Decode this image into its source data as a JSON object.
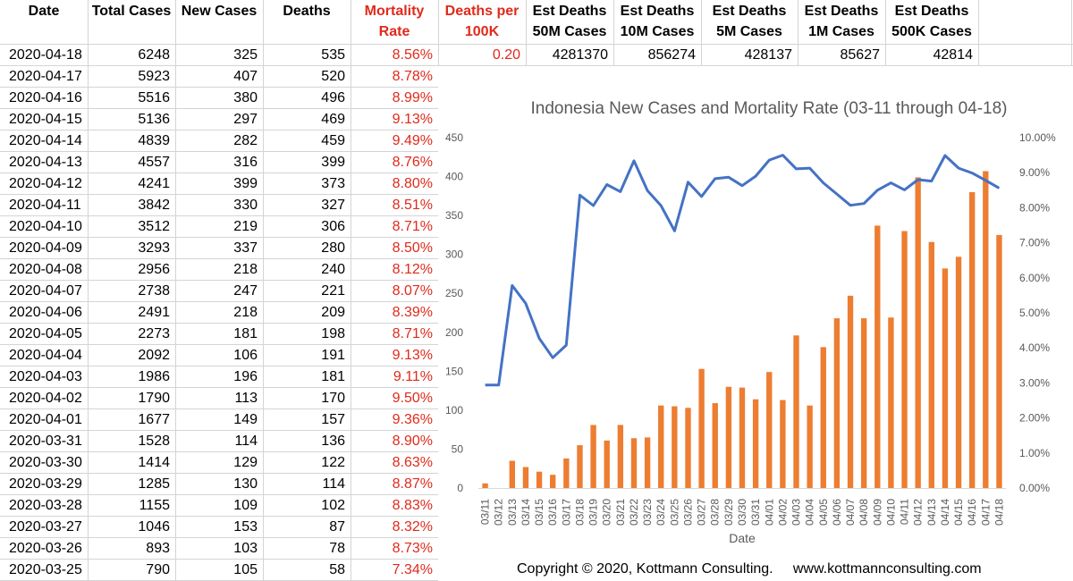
{
  "headers": {
    "date": "Date",
    "total_cases": "Total Cases",
    "new_cases": "New Cases",
    "deaths": "Deaths",
    "mortality_rate": "Mortality\nRate",
    "deaths_per_100k": "Deaths per\n100K",
    "est_50m": "Est Deaths\n50M Cases",
    "est_10m": "Est Deaths\n10M Cases",
    "est_5m": "Est Deaths\n5M Cases",
    "est_1m": "Est Deaths\n1M Cases",
    "est_500k": "Est Deaths\n500K Cases"
  },
  "first_row_extra": {
    "deaths_per_100k": "0.20",
    "est_50m": "4281370",
    "est_10m": "856274",
    "est_5m": "428137",
    "est_1m": "85627",
    "est_500k": "42814"
  },
  "rows": [
    {
      "date": "2020-04-18",
      "total": "6248",
      "new": "325",
      "deaths": "535",
      "rate": "8.56%"
    },
    {
      "date": "2020-04-17",
      "total": "5923",
      "new": "407",
      "deaths": "520",
      "rate": "8.78%"
    },
    {
      "date": "2020-04-16",
      "total": "5516",
      "new": "380",
      "deaths": "496",
      "rate": "8.99%"
    },
    {
      "date": "2020-04-15",
      "total": "5136",
      "new": "297",
      "deaths": "469",
      "rate": "9.13%"
    },
    {
      "date": "2020-04-14",
      "total": "4839",
      "new": "282",
      "deaths": "459",
      "rate": "9.49%"
    },
    {
      "date": "2020-04-13",
      "total": "4557",
      "new": "316",
      "deaths": "399",
      "rate": "8.76%"
    },
    {
      "date": "2020-04-12",
      "total": "4241",
      "new": "399",
      "deaths": "373",
      "rate": "8.80%"
    },
    {
      "date": "2020-04-11",
      "total": "3842",
      "new": "330",
      "deaths": "327",
      "rate": "8.51%"
    },
    {
      "date": "2020-04-10",
      "total": "3512",
      "new": "219",
      "deaths": "306",
      "rate": "8.71%"
    },
    {
      "date": "2020-04-09",
      "total": "3293",
      "new": "337",
      "deaths": "280",
      "rate": "8.50%"
    },
    {
      "date": "2020-04-08",
      "total": "2956",
      "new": "218",
      "deaths": "240",
      "rate": "8.12%"
    },
    {
      "date": "2020-04-07",
      "total": "2738",
      "new": "247",
      "deaths": "221",
      "rate": "8.07%"
    },
    {
      "date": "2020-04-06",
      "total": "2491",
      "new": "218",
      "deaths": "209",
      "rate": "8.39%"
    },
    {
      "date": "2020-04-05",
      "total": "2273",
      "new": "181",
      "deaths": "198",
      "rate": "8.71%"
    },
    {
      "date": "2020-04-04",
      "total": "2092",
      "new": "106",
      "deaths": "191",
      "rate": "9.13%"
    },
    {
      "date": "2020-04-03",
      "total": "1986",
      "new": "196",
      "deaths": "181",
      "rate": "9.11%"
    },
    {
      "date": "2020-04-02",
      "total": "1790",
      "new": "113",
      "deaths": "170",
      "rate": "9.50%"
    },
    {
      "date": "2020-04-01",
      "total": "1677",
      "new": "149",
      "deaths": "157",
      "rate": "9.36%"
    },
    {
      "date": "2020-03-31",
      "total": "1528",
      "new": "114",
      "deaths": "136",
      "rate": "8.90%"
    },
    {
      "date": "2020-03-30",
      "total": "1414",
      "new": "129",
      "deaths": "122",
      "rate": "8.63%"
    },
    {
      "date": "2020-03-29",
      "total": "1285",
      "new": "130",
      "deaths": "114",
      "rate": "8.87%"
    },
    {
      "date": "2020-03-28",
      "total": "1155",
      "new": "109",
      "deaths": "102",
      "rate": "8.83%"
    },
    {
      "date": "2020-03-27",
      "total": "1046",
      "new": "153",
      "deaths": "87",
      "rate": "8.32%"
    },
    {
      "date": "2020-03-26",
      "total": "893",
      "new": "103",
      "deaths": "78",
      "rate": "8.73%"
    },
    {
      "date": "2020-03-25",
      "total": "790",
      "new": "105",
      "deaths": "58",
      "rate": "7.34%"
    }
  ],
  "chart_data": {
    "type": "bar",
    "title": "Indonesia New Cases and Mortality Rate (03-11 through 04-18)",
    "xlabel": "Date",
    "ylabel": "",
    "ylim": [
      0,
      450
    ],
    "y_ticks": [
      "0",
      "50",
      "100",
      "150",
      "200",
      "250",
      "300",
      "350",
      "400",
      "450"
    ],
    "y2lim": [
      0,
      10
    ],
    "y2_ticks": [
      "0.00%",
      "1.00%",
      "2.00%",
      "3.00%",
      "4.00%",
      "5.00%",
      "6.00%",
      "7.00%",
      "8.00%",
      "9.00%",
      "10.00%"
    ],
    "categories": [
      "03/11",
      "03/12",
      "03/13",
      "03/14",
      "03/15",
      "03/16",
      "03/17",
      "03/18",
      "03/19",
      "03/20",
      "03/21",
      "03/22",
      "03/23",
      "03/24",
      "03/25",
      "03/26",
      "03/27",
      "03/28",
      "03/29",
      "03/30",
      "03/31",
      "04/01",
      "04/02",
      "04/03",
      "04/04",
      "04/05",
      "04/06",
      "04/07",
      "04/08",
      "04/09",
      "04/10",
      "04/11",
      "04/12",
      "04/13",
      "04/14",
      "04/15",
      "04/16",
      "04/17",
      "04/18"
    ],
    "series": [
      {
        "kind": "bar",
        "axis": "left",
        "color": "#ed7d31",
        "values": [
          6,
          0,
          35,
          27,
          21,
          17,
          38,
          55,
          81,
          61,
          81,
          64,
          65,
          106,
          105,
          103,
          153,
          109,
          130,
          129,
          114,
          149,
          113,
          196,
          106,
          181,
          218,
          247,
          218,
          337,
          219,
          330,
          399,
          316,
          282,
          297,
          380,
          407,
          325
        ]
      },
      {
        "kind": "line",
        "axis": "right",
        "color": "#4472c4",
        "values": [
          2.94,
          2.94,
          5.78,
          5.27,
          4.27,
          3.72,
          4.08,
          8.36,
          8.06,
          8.66,
          8.46,
          9.34,
          8.49,
          8.06,
          7.34,
          8.73,
          8.32,
          8.83,
          8.87,
          8.63,
          8.9,
          9.36,
          9.5,
          9.11,
          9.13,
          8.71,
          8.39,
          8.07,
          8.12,
          8.5,
          8.71,
          8.51,
          8.8,
          8.76,
          9.49,
          9.13,
          8.99,
          8.78,
          8.56
        ]
      }
    ],
    "grid": false,
    "legend": "none"
  },
  "footer": "Copyright © 2020, Kottmann Consulting.     www.kottmannconsulting.com"
}
